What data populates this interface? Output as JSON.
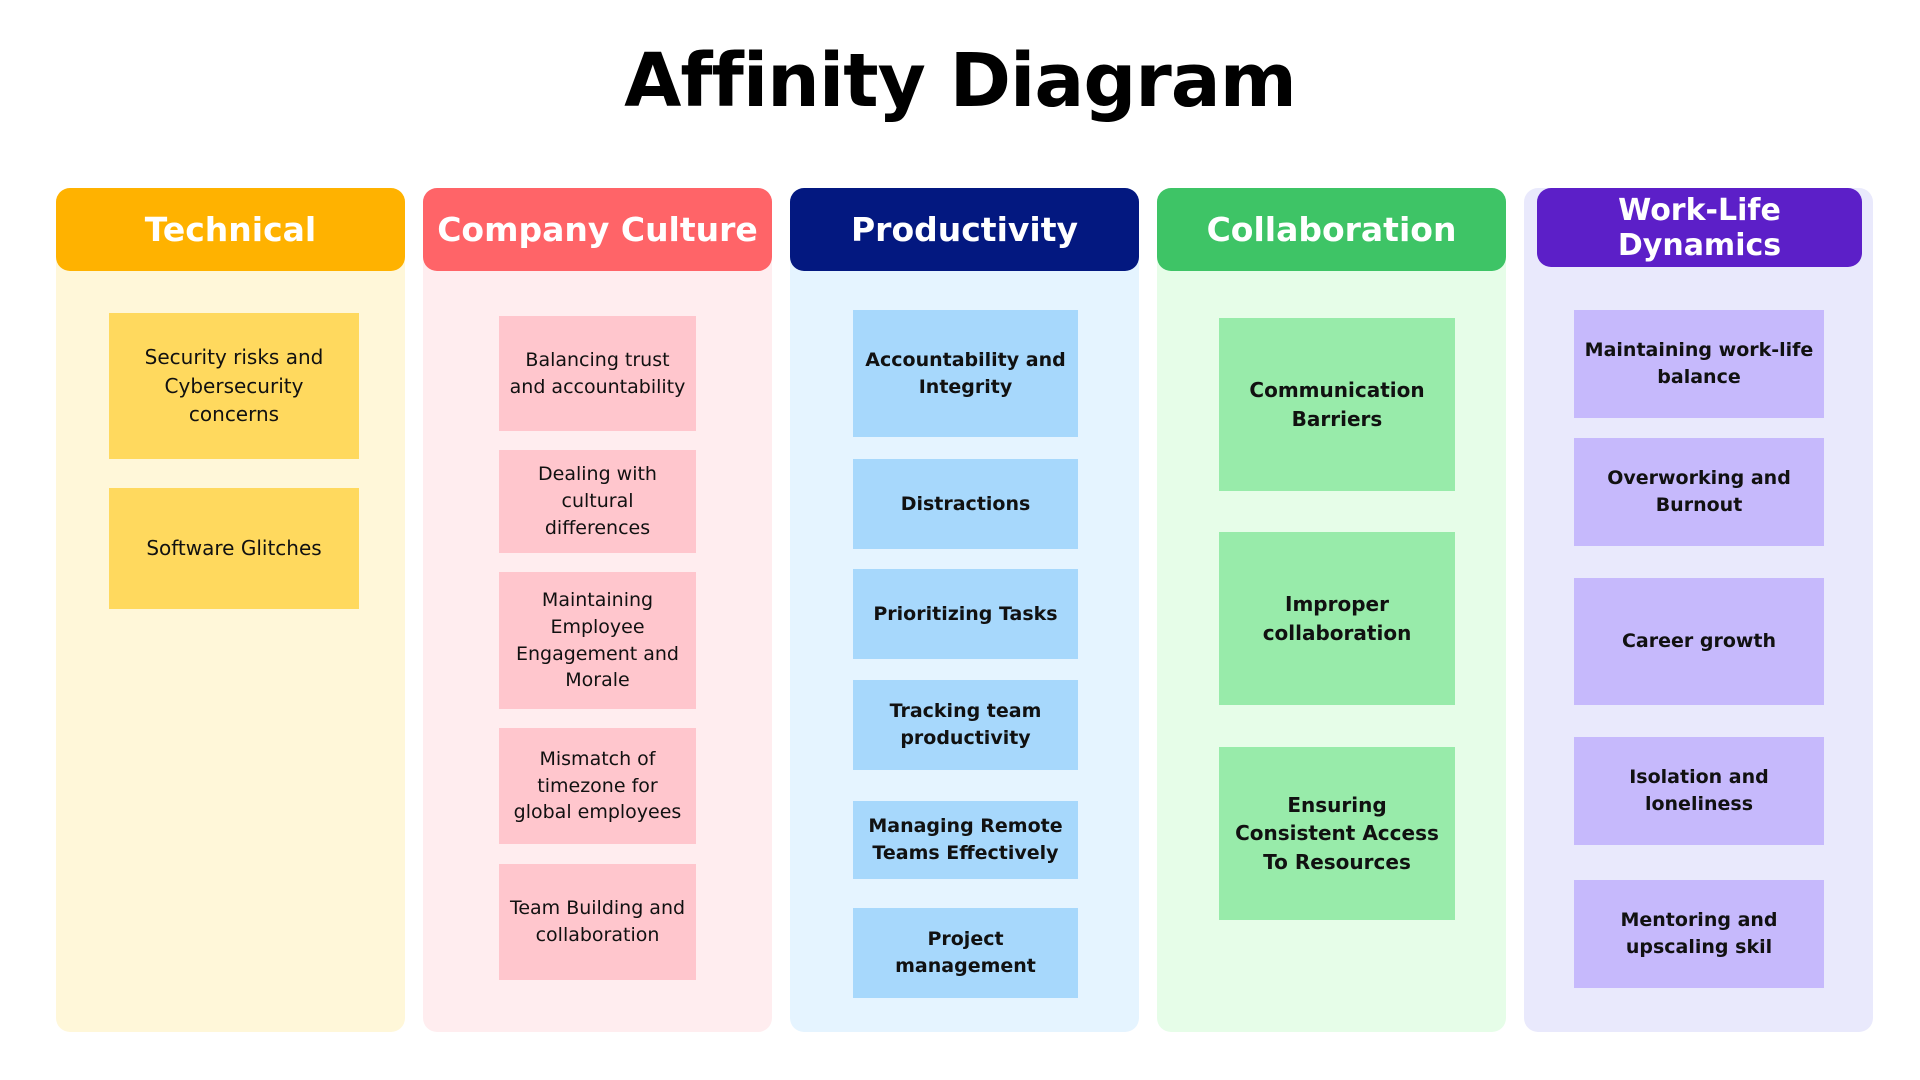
{
  "title": "Affinity Diagram",
  "colors": {
    "technical": "#ffb200",
    "company_culture": "#ff6468",
    "productivity": "#031880",
    "collaboration": "#3ec466",
    "work_life": "#5c1fc8"
  },
  "columns": {
    "technical": {
      "header": "Technical",
      "notes": [
        "Security risks and Cybersecurity concerns",
        "Software Glitches"
      ]
    },
    "company_culture": {
      "header": "Company Culture",
      "notes": [
        "Balancing trust and accountability",
        "Dealing with cultural differences",
        "Maintaining Employee Engagement and Morale",
        "Mismatch of timezone for global employees",
        "Team Building and collaboration"
      ]
    },
    "productivity": {
      "header": "Productivity",
      "notes": [
        "Accountability and Integrity",
        "Distractions",
        "Prioritizing Tasks",
        "Tracking team productivity",
        "Managing Remote Teams Effectively",
        "Project management"
      ]
    },
    "collaboration": {
      "header": "Collaboration",
      "notes": [
        "Communication Barriers",
        "Improper collaboration",
        "Ensuring Consistent Access To Resources"
      ]
    },
    "work_life": {
      "header": "Work-Life Dynamics",
      "notes": [
        "Maintaining work-life balance",
        "Overworking and Burnout",
        "Career growth",
        "Isolation and loneliness",
        "Mentoring and upscaling skil"
      ]
    }
  }
}
